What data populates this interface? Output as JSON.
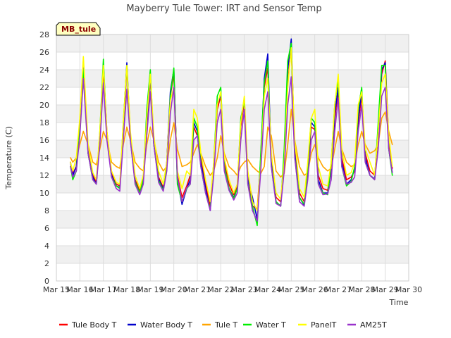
{
  "chart_data": {
    "type": "line",
    "title": "Mayberry Tule Tower: IRT and Sensor Temp",
    "xlabel": "Time",
    "ylabel": "Temperature (C)",
    "badge": "MB_tule",
    "grid": true,
    "legend_position": "bottom",
    "xlim": [
      15,
      30
    ],
    "ylim": [
      0,
      28
    ],
    "x_ticks": [
      15,
      16,
      17,
      18,
      19,
      20,
      21,
      22,
      23,
      24,
      25,
      26,
      27,
      28,
      29,
      30
    ],
    "x_tick_labels": [
      "Mar 15",
      "Mar 16",
      "Mar 17",
      "Mar 18",
      "Mar 19",
      "Mar 20",
      "Mar 21",
      "Mar 22",
      "Mar 23",
      "Mar 24",
      "Mar 25",
      "Mar 26",
      "Mar 27",
      "Mar 28",
      "Mar 29",
      "Mar 30"
    ],
    "y_ticks": [
      0,
      2,
      4,
      6,
      8,
      10,
      12,
      14,
      16,
      18,
      20,
      22,
      24,
      26,
      28
    ],
    "y_tick_labels": [
      "0",
      "2",
      "4",
      "6",
      "8",
      "10",
      "12",
      "14",
      "16",
      "18",
      "20",
      "22",
      "24",
      "26",
      "28"
    ],
    "x": [
      15.6,
      15.7,
      15.85,
      16.0,
      16.15,
      16.35,
      16.55,
      16.7,
      16.85,
      17.0,
      17.15,
      17.35,
      17.55,
      17.7,
      17.85,
      18.0,
      18.15,
      18.35,
      18.55,
      18.7,
      18.85,
      19.0,
      19.15,
      19.35,
      19.55,
      19.7,
      19.85,
      20.0,
      20.15,
      20.35,
      20.55,
      20.7,
      20.85,
      21.0,
      21.15,
      21.35,
      21.55,
      21.7,
      21.85,
      22.0,
      22.15,
      22.35,
      22.55,
      22.7,
      22.85,
      23.0,
      23.15,
      23.35,
      23.55,
      23.7,
      23.85,
      24.0,
      24.15,
      24.35,
      24.55,
      24.7,
      24.85,
      25.0,
      25.15,
      25.35,
      25.55,
      25.7,
      25.85,
      26.0,
      26.15,
      26.35,
      26.55,
      26.7,
      26.85,
      27.0,
      27.15,
      27.35,
      27.55,
      27.7,
      27.85,
      28.0,
      28.15,
      28.35,
      28.55,
      28.7,
      28.85,
      29.0,
      29.15,
      29.3
    ],
    "series": [
      {
        "name": "Tule Body T",
        "color": "#ff0000",
        "values": [
          13.5,
          12.2,
          13.0,
          17.0,
          24.5,
          15.0,
          12.0,
          11.2,
          16.0,
          24.0,
          17.0,
          12.2,
          11.0,
          10.8,
          17.0,
          24.3,
          16.5,
          11.5,
          10.3,
          11.5,
          17.5,
          23.0,
          16.0,
          11.8,
          10.6,
          13.5,
          21.0,
          23.5,
          12.0,
          9.5,
          10.8,
          12.0,
          17.5,
          16.5,
          14.0,
          11.0,
          8.5,
          13.0,
          19.5,
          21.0,
          13.5,
          11.0,
          9.8,
          10.8,
          17.5,
          20.5,
          12.0,
          8.5,
          8.2,
          13.5,
          22.0,
          24.2,
          14.0,
          9.5,
          9.0,
          13.5,
          22.5,
          26.5,
          15.0,
          10.0,
          9.0,
          12.5,
          17.5,
          17.2,
          12.0,
          10.5,
          10.3,
          12.5,
          18.5,
          21.5,
          14.0,
          11.5,
          11.8,
          12.5,
          18.0,
          21.0,
          14.5,
          12.5,
          12.0,
          16.5,
          23.5,
          25.0,
          16.0,
          12.8
        ]
      },
      {
        "name": "Water Body T",
        "color": "#0000cc",
        "values": [
          13.5,
          12.0,
          13.0,
          18.0,
          25.0,
          14.5,
          11.8,
          11.0,
          16.5,
          24.7,
          16.5,
          12.0,
          10.8,
          10.6,
          17.5,
          24.8,
          16.5,
          11.3,
          10.0,
          11.3,
          18.0,
          23.2,
          15.5,
          11.6,
          10.4,
          13.5,
          21.5,
          24.0,
          11.5,
          8.7,
          10.5,
          11.5,
          18.0,
          17.0,
          13.5,
          10.5,
          8.0,
          13.0,
          20.0,
          21.2,
          13.0,
          10.5,
          9.5,
          10.5,
          18.0,
          20.8,
          11.5,
          9.5,
          7.0,
          14.0,
          23.0,
          25.8,
          13.5,
          9.0,
          8.5,
          14.0,
          24.0,
          27.5,
          14.5,
          9.5,
          8.6,
          12.8,
          18.0,
          17.5,
          11.5,
          10.0,
          10.0,
          12.8,
          19.0,
          22.0,
          13.5,
          11.0,
          11.5,
          12.8,
          18.5,
          21.5,
          14.0,
          12.0,
          11.6,
          17.0,
          24.0,
          24.8,
          15.0,
          12.3
        ]
      },
      {
        "name": "Tule T",
        "color": "#ffa500",
        "values": [
          14.0,
          13.5,
          14.0,
          15.5,
          17.0,
          15.5,
          13.5,
          13.2,
          15.0,
          17.0,
          16.0,
          13.5,
          13.0,
          12.8,
          15.5,
          17.5,
          16.0,
          13.5,
          12.8,
          12.5,
          15.5,
          17.5,
          16.0,
          13.5,
          12.5,
          13.0,
          16.0,
          18.0,
          15.0,
          13.0,
          13.2,
          13.5,
          14.5,
          15.5,
          14.5,
          13.0,
          12.0,
          12.5,
          14.0,
          16.5,
          14.5,
          13.0,
          12.5,
          12.0,
          13.0,
          13.5,
          13.8,
          13.0,
          12.5,
          12.2,
          13.0,
          17.5,
          16.5,
          12.5,
          11.8,
          12.2,
          15.5,
          19.5,
          16.0,
          13.0,
          12.0,
          12.3,
          14.5,
          15.5,
          14.0,
          13.0,
          12.5,
          12.8,
          15.0,
          17.0,
          15.0,
          13.5,
          13.0,
          13.2,
          15.5,
          17.0,
          15.5,
          14.5,
          14.8,
          15.5,
          18.5,
          19.2,
          17.0,
          15.5
        ]
      },
      {
        "name": "Water T",
        "color": "#00ee00",
        "values": [
          13.0,
          11.5,
          12.5,
          17.5,
          24.0,
          14.5,
          11.5,
          11.0,
          17.0,
          25.2,
          16.5,
          11.8,
          10.8,
          10.5,
          18.0,
          24.5,
          16.0,
          11.2,
          10.0,
          11.5,
          19.5,
          24.0,
          15.5,
          11.4,
          10.3,
          13.0,
          21.0,
          24.2,
          11.0,
          9.0,
          10.5,
          11.0,
          18.5,
          17.5,
          13.0,
          10.0,
          8.2,
          13.5,
          21.0,
          22.0,
          13.0,
          10.5,
          9.4,
          10.5,
          18.5,
          20.5,
          11.0,
          8.5,
          6.3,
          14.5,
          22.5,
          25.0,
          13.0,
          9.0,
          8.5,
          15.0,
          25.0,
          27.0,
          14.0,
          9.5,
          8.7,
          13.0,
          18.5,
          18.0,
          11.0,
          10.0,
          9.8,
          13.5,
          20.0,
          23.0,
          13.0,
          10.8,
          11.3,
          13.0,
          19.5,
          22.0,
          13.5,
          12.0,
          11.5,
          18.0,
          24.5,
          24.5,
          15.0,
          12.0
        ]
      },
      {
        "name": "PanelT",
        "color": "#ffff00",
        "values": [
          13.5,
          12.5,
          14.0,
          18.5,
          25.5,
          15.5,
          12.3,
          11.5,
          17.0,
          24.5,
          17.0,
          12.5,
          11.2,
          11.0,
          18.0,
          24.5,
          17.0,
          12.0,
          10.5,
          12.0,
          18.5,
          23.5,
          16.5,
          12.5,
          11.0,
          13.5,
          20.5,
          22.0,
          12.5,
          10.5,
          12.5,
          12.0,
          19.5,
          18.5,
          14.5,
          11.5,
          9.0,
          13.5,
          20.0,
          21.5,
          14.0,
          11.5,
          10.0,
          11.0,
          18.0,
          21.0,
          12.5,
          9.0,
          8.0,
          13.0,
          21.0,
          23.0,
          14.5,
          10.0,
          9.3,
          13.5,
          22.0,
          26.5,
          16.0,
          10.5,
          9.5,
          13.5,
          18.5,
          19.5,
          13.0,
          11.0,
          10.8,
          13.5,
          20.0,
          23.5,
          15.0,
          12.0,
          12.3,
          13.5,
          20.0,
          21.5,
          15.0,
          13.5,
          12.0,
          17.0,
          22.5,
          23.5,
          16.5,
          13.0
        ]
      },
      {
        "name": "AM25T",
        "color": "#9932cc",
        "values": [
          13.0,
          11.8,
          12.5,
          16.5,
          23.0,
          14.5,
          11.5,
          11.0,
          15.5,
          22.5,
          16.0,
          11.8,
          10.5,
          10.2,
          16.0,
          21.8,
          16.0,
          11.0,
          9.8,
          11.0,
          16.5,
          21.5,
          15.5,
          11.2,
          10.2,
          12.5,
          19.0,
          22.0,
          11.8,
          9.0,
          10.6,
          11.0,
          16.0,
          16.5,
          13.0,
          10.0,
          8.0,
          12.0,
          18.0,
          19.5,
          12.5,
          10.3,
          9.2,
          10.0,
          16.0,
          19.5,
          11.0,
          8.0,
          6.8,
          12.5,
          19.5,
          21.5,
          13.0,
          8.8,
          8.5,
          12.5,
          20.0,
          23.2,
          14.0,
          9.0,
          8.5,
          11.5,
          16.0,
          17.0,
          11.0,
          9.8,
          9.9,
          11.5,
          17.0,
          20.8,
          13.0,
          11.0,
          11.2,
          11.8,
          17.0,
          20.0,
          13.5,
          12.0,
          11.5,
          15.0,
          21.0,
          22.0,
          15.0,
          12.3
        ]
      }
    ]
  }
}
